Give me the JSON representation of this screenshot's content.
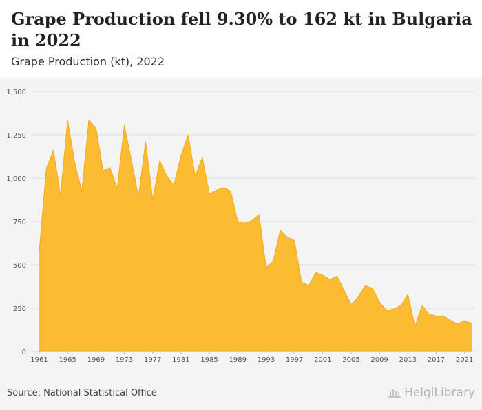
{
  "header": {
    "title": "Grape Production fell 9.30% to 162 kt in Bulgaria in 2022",
    "subtitle": "Grape Production (kt), 2022"
  },
  "footer": {
    "source": "Source: National Statistical Office",
    "brand": "HelgiLibrary"
  },
  "colors": {
    "area": "#fbbc33",
    "line": "#f3aa10",
    "grid": "#dedede",
    "axis_text": "#555555"
  },
  "chart_data": {
    "type": "area",
    "title": "Grape Production fell 9.30% to 162 kt in Bulgaria in 2022",
    "subtitle": "Grape Production (kt), 2022",
    "xlabel": "",
    "ylabel": "",
    "ylim": [
      0,
      1500
    ],
    "yticks": [
      0,
      250,
      500,
      750,
      1000,
      1250,
      1500
    ],
    "ytick_labels": [
      "0",
      "250",
      "500",
      "750",
      "1,000",
      "1,250",
      "1,500"
    ],
    "xtick_labels": [
      "1961",
      "1965",
      "1969",
      "1973",
      "1977",
      "1981",
      "1985",
      "1989",
      "1993",
      "1997",
      "2001",
      "2005",
      "2009",
      "2013",
      "2017",
      "2021"
    ],
    "grid": true,
    "legend": "none",
    "x": [
      1961,
      1962,
      1963,
      1964,
      1965,
      1966,
      1967,
      1968,
      1969,
      1970,
      1971,
      1972,
      1973,
      1974,
      1975,
      1976,
      1977,
      1978,
      1979,
      1980,
      1981,
      1982,
      1983,
      1984,
      1985,
      1986,
      1987,
      1988,
      1989,
      1990,
      1991,
      1992,
      1993,
      1994,
      1995,
      1996,
      1997,
      1998,
      1999,
      2000,
      2001,
      2002,
      2003,
      2004,
      2005,
      2006,
      2007,
      2008,
      2009,
      2010,
      2011,
      2012,
      2013,
      2014,
      2015,
      2016,
      2017,
      2018,
      2019,
      2020,
      2021,
      2022
    ],
    "series": [
      {
        "values": [
          580,
          1055,
          1160,
          900,
          1335,
          1090,
          925,
          1335,
          1290,
          1045,
          1060,
          940,
          1305,
          1105,
          890,
          1210,
          875,
          1100,
          1010,
          960,
          1130,
          1250,
          1010,
          1120,
          910,
          930,
          945,
          925,
          750,
          740,
          755,
          790,
          485,
          520,
          700,
          660,
          640,
          400,
          380,
          455,
          440,
          415,
          435,
          355,
          270,
          315,
          380,
          365,
          285,
          235,
          245,
          265,
          330,
          145,
          265,
          215,
          205,
          205,
          180,
          160,
          178,
          162
        ]
      }
    ]
  }
}
